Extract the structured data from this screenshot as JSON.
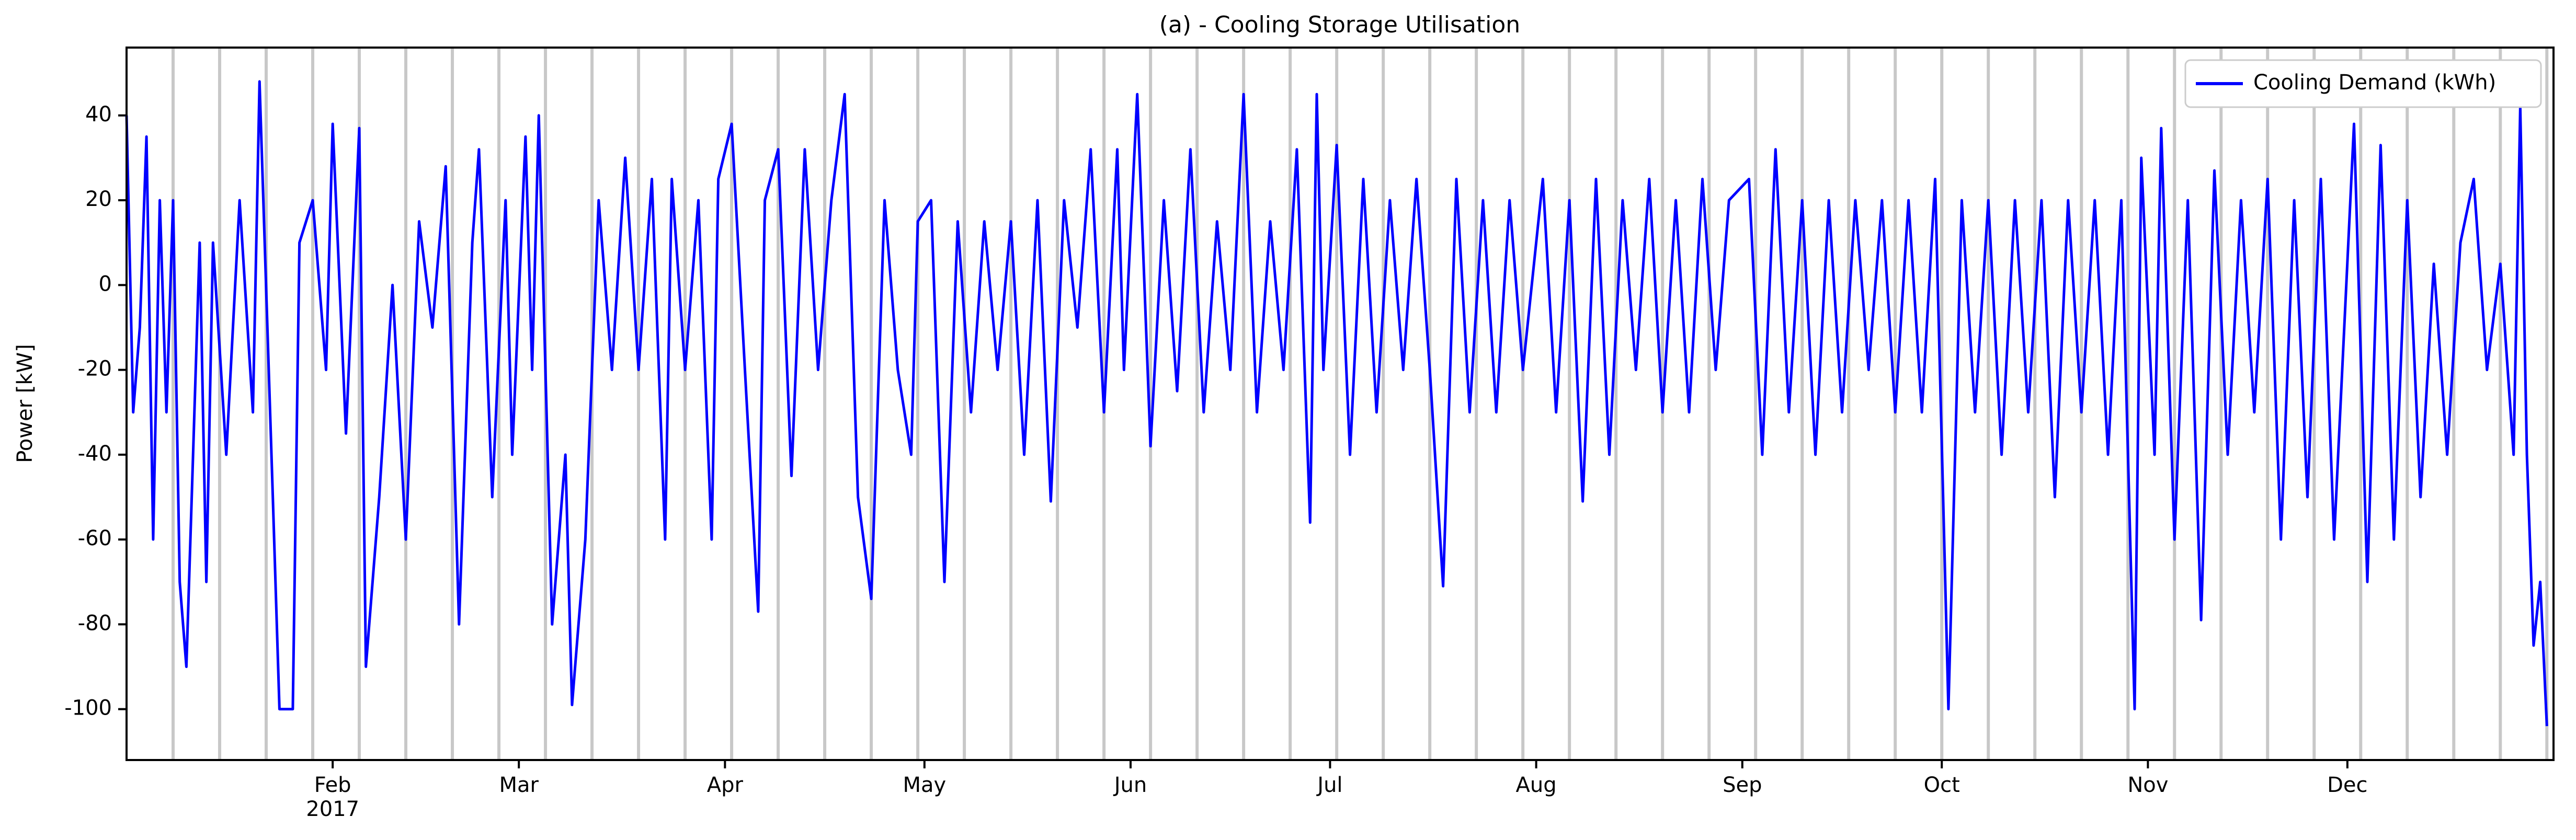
{
  "chart_data": {
    "type": "line",
    "title": "(a) - Cooling Storage Utilisation",
    "y_label": "Power [kW]",
    "x_year_label": "2017",
    "x": [
      0,
      1,
      2,
      3,
      4,
      5,
      6,
      7,
      8,
      9,
      10,
      11,
      12,
      13,
      15,
      17,
      19,
      20,
      22,
      23,
      25,
      26,
      28,
      30,
      31,
      33,
      35,
      36,
      38,
      40,
      42,
      44,
      46,
      48,
      50,
      52,
      53,
      55,
      57,
      58,
      60,
      61,
      62,
      64,
      66,
      67,
      69,
      71,
      73,
      75,
      77,
      79,
      81,
      82,
      84,
      86,
      88,
      89,
      91,
      93,
      95,
      96,
      98,
      100,
      102,
      104,
      106,
      108,
      110,
      112,
      114,
      116,
      118,
      119,
      121,
      123,
      125,
      127,
      129,
      131,
      133,
      135,
      137,
      139,
      141,
      143,
      145,
      147,
      149,
      150,
      152,
      154,
      156,
      158,
      160,
      162,
      164,
      166,
      168,
      170,
      172,
      174,
      176,
      178,
      179,
      180,
      182,
      184,
      186,
      188,
      190,
      192,
      194,
      196,
      198,
      200,
      202,
      204,
      206,
      208,
      210,
      213,
      215,
      217,
      219,
      221,
      223,
      225,
      227,
      229,
      231,
      233,
      235,
      237,
      239,
      241,
      244,
      246,
      248,
      250,
      252,
      254,
      256,
      258,
      260,
      262,
      264,
      266,
      268,
      270,
      272,
      274,
      276,
      278,
      280,
      282,
      284,
      286,
      288,
      290,
      292,
      294,
      296,
      298,
      300,
      302,
      303,
      305,
      306,
      308,
      310,
      312,
      314,
      316,
      318,
      320,
      322,
      324,
      326,
      328,
      330,
      332,
      335,
      337,
      339,
      341,
      343,
      345,
      347,
      349,
      351,
      353,
      355,
      357,
      359,
      360,
      361,
      362,
      363,
      364
    ],
    "series": [
      {
        "name": "Cooling Demand (kWh)",
        "color": "#0000ff",
        "values": [
          40,
          -30,
          -10,
          35,
          -60,
          20,
          -30,
          20,
          -70,
          -90,
          -40,
          10,
          -70,
          10,
          -40,
          20,
          -30,
          48,
          -50,
          -100,
          -100,
          10,
          20,
          -20,
          38,
          -35,
          37,
          -90,
          -50,
          0,
          -60,
          15,
          -10,
          28,
          -80,
          10,
          32,
          -50,
          20,
          -40,
          35,
          -20,
          40,
          -80,
          -40,
          -99,
          -60,
          20,
          -20,
          30,
          -20,
          25,
          -60,
          25,
          -20,
          20,
          -60,
          25,
          38,
          -20,
          -77,
          20,
          32,
          -45,
          32,
          -20,
          20,
          45,
          -50,
          -74,
          20,
          -20,
          -40,
          15,
          20,
          -70,
          15,
          -30,
          15,
          -20,
          15,
          -40,
          20,
          -51,
          20,
          -10,
          32,
          -30,
          32,
          -20,
          45,
          -38,
          20,
          -25,
          32,
          -30,
          15,
          -20,
          45,
          -30,
          15,
          -20,
          32,
          -56,
          45,
          -20,
          33,
          -40,
          25,
          -30,
          20,
          -20,
          25,
          -20,
          -71,
          25,
          -30,
          20,
          -30,
          20,
          -20,
          25,
          -30,
          20,
          -51,
          25,
          -40,
          20,
          -20,
          25,
          -30,
          20,
          -30,
          25,
          -20,
          20,
          25,
          -40,
          32,
          -30,
          20,
          -40,
          20,
          -30,
          20,
          -20,
          20,
          -30,
          20,
          -30,
          25,
          -100,
          20,
          -30,
          20,
          -40,
          20,
          -30,
          20,
          -50,
          20,
          -30,
          20,
          -40,
          20,
          -100,
          30,
          -40,
          37,
          -60,
          20,
          -79,
          27,
          -40,
          20,
          -30,
          25,
          -60,
          20,
          -50,
          25,
          -60,
          38,
          -70,
          33,
          -60,
          20,
          -50,
          5,
          -40,
          10,
          25,
          -20,
          5,
          -40,
          42,
          -40,
          -85,
          -70,
          -104
        ]
      }
    ],
    "xlim": [
      0,
      365
    ],
    "xticks": [
      {
        "value": 31,
        "label": "Feb"
      },
      {
        "value": 59,
        "label": "Mar"
      },
      {
        "value": 90,
        "label": "Apr"
      },
      {
        "value": 120,
        "label": "May"
      },
      {
        "value": 151,
        "label": "Jun"
      },
      {
        "value": 181,
        "label": "Jul"
      },
      {
        "value": 212,
        "label": "Aug"
      },
      {
        "value": 243,
        "label": "Sep"
      },
      {
        "value": 273,
        "label": "Oct"
      },
      {
        "value": 304,
        "label": "Nov"
      },
      {
        "value": 334,
        "label": "Dec"
      }
    ],
    "xgrid_lines": [
      7,
      14,
      21,
      28,
      35,
      42,
      49,
      56,
      63,
      70,
      77,
      84,
      91,
      98,
      105,
      112,
      119,
      126,
      133,
      140,
      147,
      154,
      161,
      168,
      175,
      182,
      189,
      196,
      203,
      210,
      217,
      224,
      231,
      238,
      245,
      252,
      259,
      266,
      273,
      280,
      287,
      294,
      301,
      308,
      315,
      322,
      329,
      336,
      343,
      350,
      357,
      364
    ],
    "ylim": [
      -112,
      56
    ],
    "yticks": [
      -100,
      -80,
      -60,
      -40,
      -20,
      0,
      20,
      40
    ],
    "legend": "upper right"
  }
}
